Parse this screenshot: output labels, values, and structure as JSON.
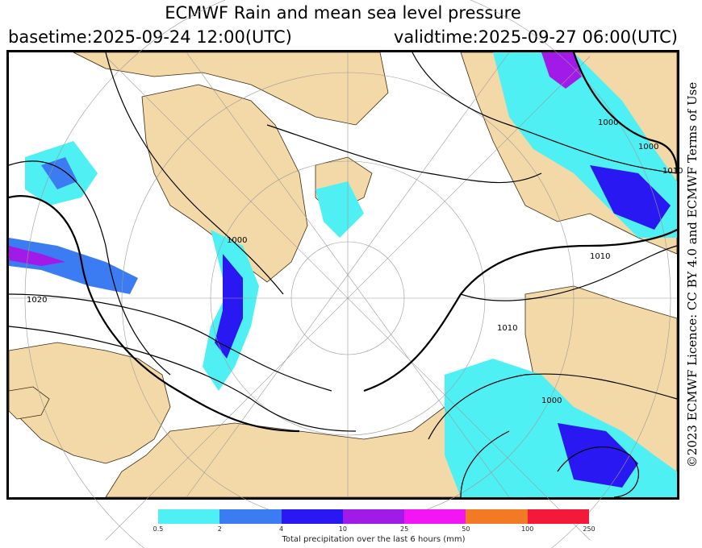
{
  "header": {
    "title": "ECMWF Rain and mean sea level pressure",
    "basetime": "basetime:2025-09-24 12:00(UTC)",
    "validtime": "validtime:2025-09-27 06:00(UTC)"
  },
  "credit": "©2023 ECMWF Licence: CC BY 4.0 and ECMWF Terms of Use",
  "legend": {
    "label": "Total precipitation over the last 6 hours (mm)",
    "ticks": [
      "0.5",
      "2",
      "4",
      "10",
      "25",
      "50",
      "100",
      "250"
    ],
    "colors": [
      "#4ef0f4",
      "#3b7cf2",
      "#2a18f2",
      "#a21ae8",
      "#f216f2",
      "#f27a24",
      "#f21a38"
    ]
  },
  "map": {
    "land_color": "#f3d9a8",
    "sea_color": "#ffffff",
    "isobar_labels": [
      "1000",
      "1020",
      "1010",
      "1010",
      "1000",
      "1000",
      "1010",
      "1000"
    ]
  }
}
